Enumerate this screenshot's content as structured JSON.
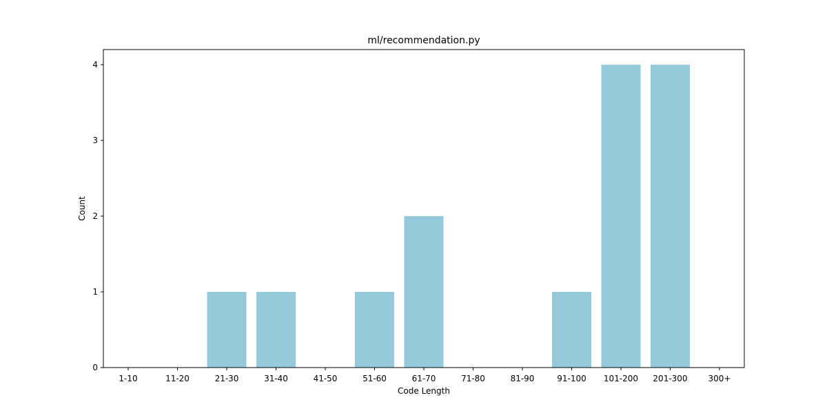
{
  "chart_data": {
    "type": "bar",
    "title": "ml/recommendation.py",
    "xlabel": "Code Length",
    "ylabel": "Count",
    "categories": [
      "1-10",
      "11-20",
      "21-30",
      "31-40",
      "41-50",
      "51-60",
      "61-70",
      "71-80",
      "81-90",
      "91-100",
      "101-200",
      "201-300",
      "300+"
    ],
    "values": [
      0,
      0,
      1,
      1,
      0,
      1,
      2,
      0,
      0,
      1,
      4,
      4,
      0
    ],
    "ylim": [
      0,
      4.2
    ],
    "yticks": [
      "0",
      "1",
      "2",
      "3",
      "4"
    ],
    "grid": false,
    "bar_color": "#96c9dc"
  }
}
